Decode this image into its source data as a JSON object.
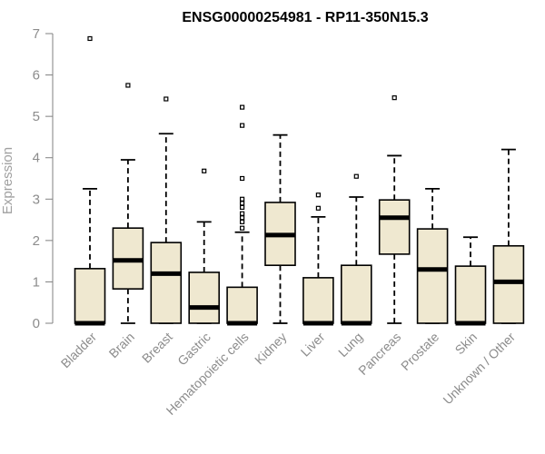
{
  "chart_data": {
    "type": "boxplot",
    "title": "ENSG00000254981 - RP11-350N15.3",
    "ylabel": "Expression",
    "xlabel": "",
    "ylim": [
      0,
      7
    ],
    "yticks": [
      0,
      1,
      2,
      3,
      4,
      5,
      6,
      7
    ],
    "grid": false,
    "colors": {
      "box_fill": "#efe8d0",
      "box_stroke": "#000000",
      "axis": "#808080",
      "median": "#000000"
    },
    "categories": [
      "Bladder",
      "Brain",
      "Breast",
      "Gastric",
      "Hematopoietic cells",
      "Kidney",
      "Liver",
      "Lung",
      "Pancreas",
      "Prostate",
      "Skin",
      "Unknown / Other"
    ],
    "boxes": [
      {
        "min": 0,
        "q1": 0,
        "median": 0,
        "q3": 1.32,
        "max": 3.25,
        "outliers": [
          6.88
        ]
      },
      {
        "min": 0,
        "q1": 0.83,
        "median": 1.52,
        "q3": 2.3,
        "max": 3.95,
        "outliers": [
          5.75
        ]
      },
      {
        "min": 0,
        "q1": 0,
        "median": 1.2,
        "q3": 1.95,
        "max": 4.58,
        "outliers": [
          5.42
        ]
      },
      {
        "min": 0,
        "q1": 0,
        "median": 0.38,
        "q3": 1.23,
        "max": 2.45,
        "outliers": [
          3.68
        ]
      },
      {
        "min": 0,
        "q1": 0,
        "median": 0,
        "q3": 0.87,
        "max": 2.2,
        "outliers": [
          2.3,
          2.45,
          2.55,
          2.65,
          2.8,
          2.9,
          3.0,
          3.5,
          4.78,
          5.22
        ]
      },
      {
        "min": 0,
        "q1": 1.4,
        "median": 2.13,
        "q3": 2.92,
        "max": 4.55,
        "outliers": []
      },
      {
        "min": 0,
        "q1": 0,
        "median": 0,
        "q3": 1.1,
        "max": 2.57,
        "outliers": [
          2.78,
          3.1
        ]
      },
      {
        "min": 0,
        "q1": 0,
        "median": 0,
        "q3": 1.4,
        "max": 3.05,
        "outliers": [
          3.55
        ]
      },
      {
        "min": 0,
        "q1": 1.67,
        "median": 2.55,
        "q3": 2.98,
        "max": 4.05,
        "outliers": [
          5.45
        ]
      },
      {
        "min": 0,
        "q1": 0,
        "median": 1.3,
        "q3": 2.28,
        "max": 3.25,
        "outliers": []
      },
      {
        "min": 0,
        "q1": 0,
        "median": 0,
        "q3": 1.38,
        "max": 2.08,
        "outliers": []
      },
      {
        "min": 0,
        "q1": 0,
        "median": 1.0,
        "q3": 1.87,
        "max": 4.2,
        "outliers": []
      }
    ]
  }
}
